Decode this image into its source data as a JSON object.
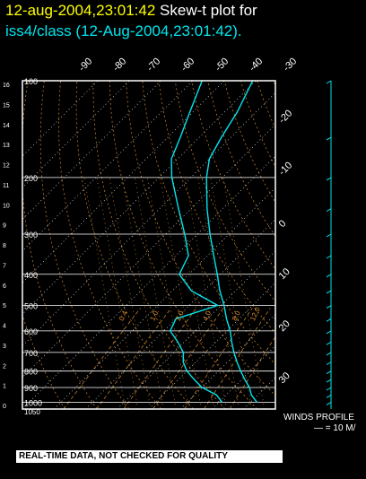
{
  "title": {
    "datetime": "12-aug-2004,23:01:42",
    "label": "Skew-t plot for",
    "station": "iss4/class (12-Aug-2004,23:01:42)."
  },
  "colors": {
    "background": "#000000",
    "frame": "#ffffff",
    "isobar": "#ffffff",
    "isotherm": "#ffffff",
    "dry_adiabat": "#d98c2a",
    "moist_adiabat": "#d98c2a",
    "mixing_ratio": "#d98c2a",
    "trace": "#00e5ee",
    "title_highlight": "#ffff00"
  },
  "chart_data": {
    "type": "skew-t",
    "pressure_axis_hPa": {
      "range": [
        1050,
        100
      ],
      "ticks": [
        100,
        200,
        300,
        400,
        500,
        600,
        700,
        800,
        900,
        1000
      ],
      "bottom_label": "1050"
    },
    "height_axis_km": {
      "ticks": [
        "0",
        "1",
        "2",
        "3",
        "4",
        "5",
        "6",
        "7",
        "8",
        "9",
        "10",
        "11",
        "12",
        "13",
        "14",
        "15",
        "16"
      ]
    },
    "temperature_ticks_C": {
      "top": [
        "-90",
        "-80",
        "-70",
        "-60",
        "-50",
        "-40",
        "-30"
      ],
      "right": [
        "-20",
        "-10",
        "0",
        "10",
        "20",
        "30"
      ]
    },
    "temperature_range_C": [
      -40,
      40
    ],
    "isotherm_step_C": 10,
    "mixing_ratio_labels": [
      "0.4",
      "1.0",
      "2.0",
      "4.0",
      "8.0",
      "12.0",
      "20"
    ],
    "adiabat_labels": [
      "28",
      "32",
      "36"
    ],
    "sounding": {
      "temperature": [
        [
          1000,
          32
        ],
        [
          950,
          28
        ],
        [
          900,
          25
        ],
        [
          850,
          21
        ],
        [
          800,
          17
        ],
        [
          750,
          13
        ],
        [
          700,
          9
        ],
        [
          650,
          5
        ],
        [
          600,
          1
        ],
        [
          550,
          -4
        ],
        [
          500,
          -9
        ],
        [
          450,
          -15
        ],
        [
          400,
          -21
        ],
        [
          350,
          -28
        ],
        [
          300,
          -36
        ],
        [
          250,
          -45
        ],
        [
          200,
          -55
        ],
        [
          175,
          -60
        ],
        [
          150,
          -63
        ],
        [
          125,
          -66
        ],
        [
          100,
          -71
        ]
      ],
      "dewpoint": [
        [
          1000,
          21
        ],
        [
          950,
          17
        ],
        [
          900,
          10
        ],
        [
          850,
          5
        ],
        [
          800,
          0
        ],
        [
          750,
          -4
        ],
        [
          700,
          -7
        ],
        [
          650,
          -12
        ],
        [
          600,
          -18
        ],
        [
          550,
          -20
        ],
        [
          500,
          -11
        ],
        [
          450,
          -24
        ],
        [
          400,
          -33
        ],
        [
          350,
          -36
        ],
        [
          300,
          -44
        ],
        [
          250,
          -54
        ],
        [
          200,
          -66
        ],
        [
          175,
          -72
        ],
        [
          150,
          -76
        ],
        [
          125,
          -81
        ],
        [
          100,
          -87
        ]
      ]
    },
    "winds_profile": {
      "label": "WINDS PROFILE",
      "scale": "— = 10 M/"
    }
  },
  "footer": {
    "quality_notice": "REAL-TIME DATA, NOT CHECKED FOR QUALITY"
  }
}
